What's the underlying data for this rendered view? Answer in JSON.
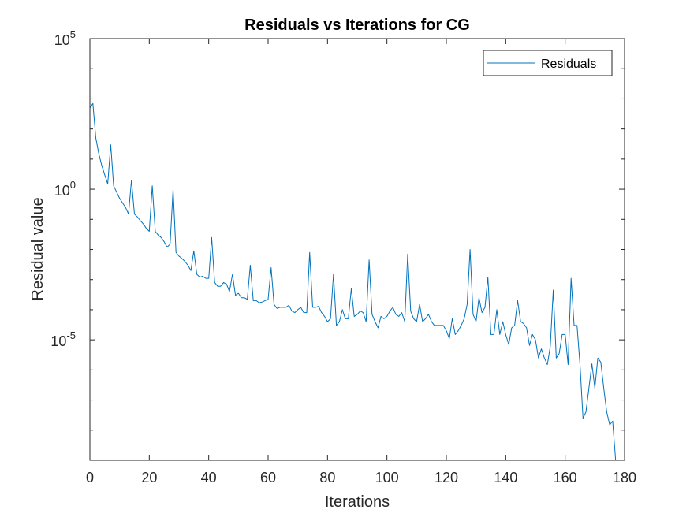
{
  "chart_data": {
    "type": "line",
    "title": "Residuals vs Iterations for CG",
    "xlabel": "Iterations",
    "ylabel": "Residual value",
    "xlim": [
      0,
      180
    ],
    "ylim": [
      1e-09,
      100000
    ],
    "yscale": "log",
    "xticks": [
      0,
      20,
      40,
      60,
      80,
      100,
      120,
      140,
      160,
      180
    ],
    "yticks_labeled": [
      {
        "base": "10",
        "exp": "-5",
        "value": 1e-05
      },
      {
        "base": "10",
        "exp": "0",
        "value": 1
      },
      {
        "base": "10",
        "exp": "5",
        "value": 100000
      }
    ],
    "yticks_minor": [
      1e-08,
      1e-07,
      1e-06,
      0.0001,
      0.001,
      0.01,
      0.1,
      10,
      100,
      1000,
      10000
    ],
    "grid": false,
    "box": true,
    "legend": {
      "location": "top-right",
      "entries": [
        "Residuals"
      ]
    },
    "series": [
      {
        "name": "Residuals",
        "color": "#0072BD",
        "x": [
          0,
          1,
          2,
          3,
          4,
          5,
          6,
          7,
          8,
          9,
          10,
          11,
          12,
          13,
          14,
          15,
          16,
          17,
          18,
          19,
          20,
          21,
          22,
          23,
          24,
          25,
          26,
          27,
          28,
          29,
          30,
          31,
          32,
          33,
          34,
          35,
          36,
          37,
          38,
          39,
          40,
          41,
          42,
          43,
          44,
          45,
          46,
          47,
          48,
          49,
          50,
          51,
          52,
          53,
          54,
          55,
          56,
          57,
          58,
          59,
          60,
          61,
          62,
          63,
          64,
          65,
          66,
          67,
          68,
          69,
          70,
          71,
          72,
          73,
          74,
          75,
          76,
          77,
          78,
          79,
          80,
          81,
          82,
          83,
          84,
          85,
          86,
          87,
          88,
          89,
          90,
          91,
          92,
          93,
          94,
          95,
          96,
          97,
          98,
          99,
          100,
          101,
          102,
          103,
          104,
          105,
          106,
          107,
          108,
          109,
          110,
          111,
          112,
          113,
          114,
          115,
          116,
          117,
          118,
          119,
          120,
          121,
          122,
          123,
          124,
          125,
          126,
          127,
          128,
          129,
          130,
          131,
          132,
          133,
          134,
          135,
          136,
          137,
          138,
          139,
          140,
          141,
          142,
          143,
          144,
          145,
          146,
          147,
          148,
          149,
          150,
          151,
          152,
          153,
          154,
          155,
          156,
          157,
          158,
          159,
          160,
          161,
          162,
          163,
          164,
          165,
          166,
          167,
          168,
          169,
          170,
          171,
          172,
          173,
          174,
          175,
          176,
          177
        ],
        "y": [
          500,
          700,
          50,
          15,
          6,
          3,
          1.5,
          30,
          1.3,
          0.8,
          0.5,
          0.35,
          0.25,
          0.15,
          2,
          0.15,
          0.12,
          0.09,
          0.07,
          0.05,
          0.04,
          1.3,
          0.04,
          0.03,
          0.025,
          0.018,
          0.012,
          0.015,
          1,
          0.008,
          0.006,
          0.005,
          0.004,
          0.003,
          0.002,
          0.009,
          0.0015,
          0.0012,
          0.0013,
          0.0011,
          0.0011,
          0.025,
          0.0008,
          0.0006,
          0.0006,
          0.0008,
          0.0007,
          0.0004,
          0.0015,
          0.0003,
          0.00035,
          0.00025,
          0.00025,
          0.00022,
          0.003,
          0.0002,
          0.0002,
          0.00017,
          0.00018,
          0.0002,
          0.00022,
          0.0025,
          0.00015,
          0.00011,
          0.00012,
          0.00012,
          0.00012,
          0.00014,
          9e-05,
          8e-05,
          0.0001,
          0.00012,
          8e-05,
          8e-05,
          0.008,
          0.00012,
          0.00012,
          0.00013,
          8e-05,
          6e-05,
          4e-05,
          5e-05,
          0.0015,
          3e-05,
          4e-05,
          0.0001,
          5e-05,
          5e-05,
          0.0005,
          6e-05,
          7e-05,
          9e-05,
          8e-05,
          4e-05,
          0.0045,
          7e-05,
          4e-05,
          2.5e-05,
          6e-05,
          5e-05,
          6e-05,
          9e-05,
          0.00012,
          7e-05,
          6e-05,
          8e-05,
          4e-05,
          0.007,
          9e-05,
          5e-05,
          4e-05,
          0.00015,
          4e-05,
          5e-05,
          7e-05,
          4e-05,
          3e-05,
          3e-05,
          3e-05,
          3e-05,
          2e-05,
          1.1e-05,
          5e-05,
          1.5e-05,
          2e-05,
          3e-05,
          5e-05,
          0.00015,
          0.01,
          7e-05,
          4e-05,
          0.00025,
          8e-05,
          0.00012,
          0.0012,
          1.5e-05,
          1.5e-05,
          0.0001,
          1.5e-05,
          4e-05,
          1.5e-05,
          7e-06,
          2.5e-05,
          3e-05,
          0.0002,
          4e-05,
          3.5e-05,
          2.5e-05,
          6.5e-06,
          1.5e-05,
          1e-05,
          2.5e-06,
          5e-06,
          2.5e-06,
          1.5e-06,
          6e-06,
          0.00045,
          2.5e-06,
          3.5e-06,
          1.5e-05,
          1.5e-05,
          1.5e-06,
          0.0011,
          3e-05,
          3e-05,
          1.5e-06,
          2.5e-08,
          4e-08,
          2.5e-07,
          1.6e-06,
          2.5e-07,
          2.5e-06,
          1.8e-06,
          2.5e-07,
          4e-08,
          1.5e-08,
          2e-08,
          1e-10
        ]
      }
    ]
  }
}
